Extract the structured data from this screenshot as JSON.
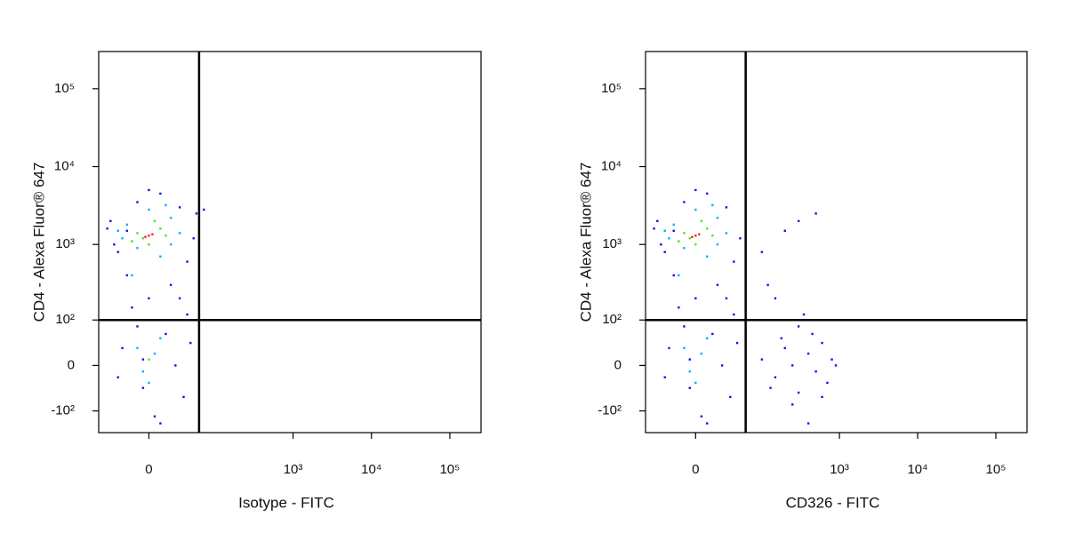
{
  "chart_data": [
    {
      "type": "scatter",
      "scale": "biexponential",
      "xlabel": "Isotype - FITC",
      "ylabel": "CD4 - Alexa Fluor® 647",
      "xlim": [
        -60,
        250000
      ],
      "ylim": [
        -200,
        300000
      ],
      "xticks": [
        0,
        {
          "value": 1000,
          "label": "10³"
        },
        {
          "value": 10000,
          "label": "10⁴"
        },
        {
          "value": 100000,
          "label": "10⁵"
        }
      ],
      "yticks": [
        {
          "value": -100,
          "label": "-10²"
        },
        0,
        {
          "value": 100,
          "label": "10²"
        },
        {
          "value": 1000,
          "label": "10³"
        },
        {
          "value": 10000,
          "label": "10⁴"
        },
        {
          "value": 100000,
          "label": "10⁵"
        }
      ],
      "gates": {
        "x": 60,
        "y": 100
      },
      "series": [
        {
          "color": "#1010ff",
          "x": [
            -40,
            -30,
            -20,
            -10,
            10,
            30,
            50,
            40,
            -35,
            20,
            0,
            -15,
            15,
            -25,
            25,
            -5,
            35,
            5,
            -30,
            45,
            55,
            -45,
            0,
            30,
            -10,
            70,
            10,
            -20,
            40,
            -5
          ],
          "values": [
            2000,
            800,
            1500,
            3500,
            4500,
            3000,
            1200,
            600,
            1000,
            300,
            200,
            150,
            60,
            30,
            0,
            -40,
            -60,
            -120,
            -20,
            40,
            2500,
            1600,
            5000,
            200,
            80,
            2800,
            -150,
            400,
            120,
            10
          ]
        },
        {
          "color": "#00b0ff",
          "x": [
            -20,
            20,
            -10,
            10,
            30,
            -25,
            0,
            15,
            -15,
            5,
            -5,
            10,
            0,
            -10,
            20,
            -30
          ],
          "values": [
            1800,
            2200,
            900,
            700,
            1400,
            1200,
            2800,
            3200,
            400,
            20,
            -10,
            50,
            -30,
            30,
            1000,
            1500
          ]
        },
        {
          "color": "#50e030",
          "x": [
            -10,
            10,
            0,
            5,
            -5,
            15,
            -15,
            0
          ],
          "values": [
            1400,
            1600,
            1000,
            2000,
            1200,
            1300,
            1100,
            10
          ]
        },
        {
          "color": "#ff2020",
          "x": [
            0,
            -3,
            3
          ],
          "values": [
            1300,
            1250,
            1350
          ]
        }
      ]
    },
    {
      "type": "scatter",
      "scale": "biexponential",
      "xlabel": "CD326 - FITC",
      "ylabel": "CD4 - Alexa Fluor® 647",
      "xlim": [
        -60,
        250000
      ],
      "ylim": [
        -200,
        300000
      ],
      "xticks": [
        0,
        {
          "value": 1000,
          "label": "10³"
        },
        {
          "value": 10000,
          "label": "10⁴"
        },
        {
          "value": 100000,
          "label": "10⁵"
        }
      ],
      "yticks": [
        {
          "value": -100,
          "label": "-10²"
        },
        0,
        {
          "value": 100,
          "label": "10²"
        },
        {
          "value": 1000,
          "label": "10³"
        },
        {
          "value": 10000,
          "label": "10⁴"
        },
        {
          "value": 100000,
          "label": "10⁵"
        }
      ],
      "gates": {
        "x": 60,
        "y": 100
      },
      "series": [
        {
          "color": "#1010ff",
          "x": [
            -40,
            -30,
            -20,
            -10,
            10,
            30,
            50,
            40,
            -35,
            20,
            0,
            -15,
            15,
            -25,
            25,
            -5,
            35,
            5,
            -30,
            45,
            -45,
            0,
            30,
            -10,
            10,
            -20,
            40,
            -5,
            100,
            150,
            200,
            250,
            300,
            400,
            500,
            600,
            700,
            800,
            400,
            300,
            150,
            200,
            300,
            500,
            100,
            120,
            350,
            900,
            250,
            180,
            600,
            450,
            130
          ],
          "values": [
            2000,
            800,
            1500,
            3500,
            4500,
            3000,
            1200,
            600,
            1000,
            300,
            200,
            150,
            60,
            30,
            0,
            -40,
            -60,
            -120,
            -20,
            40,
            1600,
            5000,
            200,
            80,
            -150,
            400,
            120,
            10,
            10,
            -20,
            30,
            0,
            -50,
            20,
            -10,
            40,
            -30,
            10,
            -150,
            80,
            200,
            1500,
            2000,
            2500,
            800,
            300,
            120,
            0,
            -80,
            50,
            -60,
            60,
            -40
          ]
        },
        {
          "color": "#00b0ff",
          "x": [
            -20,
            20,
            -10,
            10,
            30,
            -25,
            0,
            15,
            -15,
            5,
            -5,
            10,
            0,
            -10,
            20,
            -30
          ],
          "values": [
            1800,
            2200,
            900,
            700,
            1400,
            1200,
            2800,
            3200,
            400,
            20,
            -10,
            50,
            -30,
            30,
            1000,
            1500
          ]
        },
        {
          "color": "#50e030",
          "x": [
            -10,
            10,
            0,
            5,
            -5,
            15,
            -15
          ],
          "values": [
            1400,
            1600,
            1000,
            2000,
            1200,
            1300,
            1100
          ]
        },
        {
          "color": "#ff2020",
          "x": [
            0,
            -3,
            3
          ],
          "values": [
            1300,
            1250,
            1350
          ]
        }
      ]
    }
  ]
}
